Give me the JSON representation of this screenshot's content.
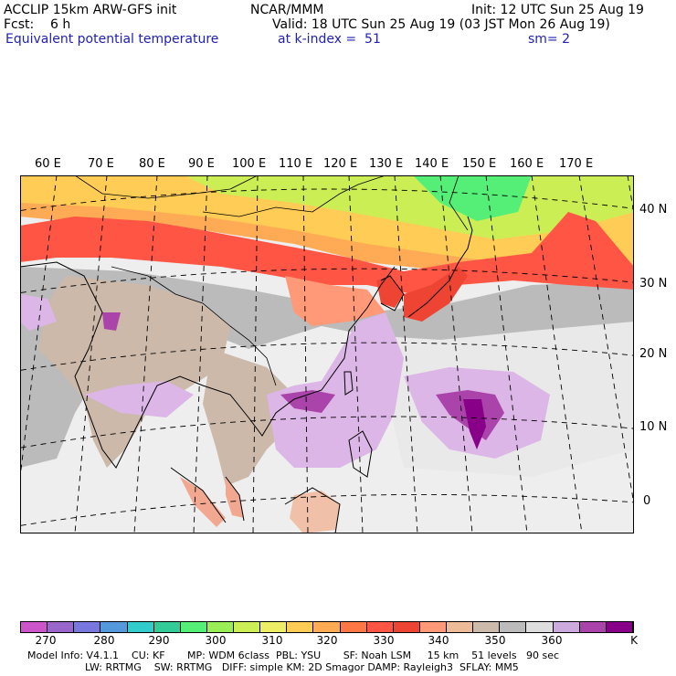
{
  "header": {
    "title_left": "ACCLIP 15km ARW-GFS init",
    "fcst": "Fcst:    6 h",
    "field": "Equivalent potential temperature",
    "center": "NCAR/MMM",
    "valid": "Valid: 18 UTC Sun 25 Aug 19 (03 JST Mon 26 Aug 19)",
    "level": "at k-index =  51",
    "init": "Init: 12 UTC Sun 25 Aug 19",
    "smooth": "sm= 2"
  },
  "longitude_labels": [
    "60 E",
    "70 E",
    "80 E",
    "90 E",
    "100 E",
    "110 E",
    "120 E",
    "130 E",
    "140 E",
    "150 E",
    "160 E",
    "170 E"
  ],
  "latitude_labels": [
    "40 N",
    "30 N",
    "20 N",
    "10 N",
    "0"
  ],
  "colorbar": {
    "colors": [
      "#cc55cc",
      "#9966cc",
      "#7777dd",
      "#5599dd",
      "#33cccc",
      "#33cc99",
      "#55ee77",
      "#99ee55",
      "#ccee55",
      "#eeee66",
      "#ffcc55",
      "#ffaa55",
      "#ff7744",
      "#ff5544",
      "#ee4433",
      "#ff9977",
      "#eebb99",
      "#ccbbaa",
      "#bbbbbb",
      "#dddddd",
      "#ccaadd",
      "#aa44aa",
      "#880088"
    ],
    "tick_labels": [
      "270",
      "280",
      "290",
      "300",
      "310",
      "320",
      "330",
      "340",
      "350",
      "360"
    ],
    "unit": "K"
  },
  "map_colors": {
    "ocean": "#eeeeee",
    "land": "#bbbbbb",
    "tan": "#ccb9aa",
    "light": "#e9e9e9",
    "red": "#ff5544",
    "darkred": "#ee4433",
    "orange": "#ffaa55",
    "yellow": "#ffcc55",
    "lightyellow": "#ccee55",
    "green": "#55ee77",
    "salmon": "#ff9977",
    "lavender": "#dcb6e6",
    "purple": "#aa44aa",
    "darkpurple": "#880088"
  },
  "model_info": {
    "line1": "Model Info: V4.1.1    CU: KF       MP: WDM 6class  PBL: YSU       SF: Noah LSM     15 km    51 levels   90 sec",
    "line2": "                  LW: RRTMG    SW: RRTMG   DIFF: simple KM: 2D Smagor DAMP: Rayleigh3  SFLAY: MM5"
  }
}
